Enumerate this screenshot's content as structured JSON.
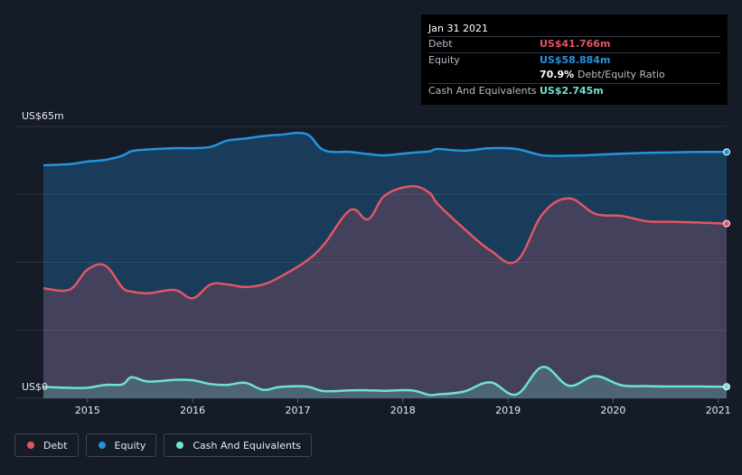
{
  "chart_data": {
    "type": "area",
    "x": [
      2014.58,
      2014.83,
      2015.0,
      2015.17,
      2015.33,
      2015.42,
      2015.58,
      2015.83,
      2016.0,
      2016.17,
      2016.33,
      2016.5,
      2016.67,
      2016.83,
      2017.08,
      2017.25,
      2017.5,
      2017.67,
      2017.83,
      2018.08,
      2018.25,
      2018.33,
      2018.58,
      2018.83,
      2019.08,
      2019.33,
      2019.58,
      2019.83,
      2020.08,
      2020.33,
      2020.58,
      2020.83,
      2021.08
    ],
    "series": [
      {
        "name": "Debt",
        "color": "#e15664",
        "values": [
          26.3,
          26.0,
          30.8,
          31.7,
          26.5,
          25.5,
          25.1,
          25.9,
          23.9,
          27.2,
          27.2,
          26.6,
          27.2,
          29.0,
          32.8,
          36.8,
          45.0,
          42.8,
          48.5,
          50.7,
          49.2,
          46.5,
          40.6,
          35.4,
          32.8,
          44.1,
          47.8,
          44.1,
          43.6,
          42.3,
          42.2,
          42.0,
          41.766
        ]
      },
      {
        "name": "Equity",
        "color": "#2394df",
        "values": [
          55.7,
          56.0,
          56.6,
          57.0,
          58.0,
          59.1,
          59.5,
          59.8,
          59.8,
          60.1,
          61.6,
          62.1,
          62.7,
          63.0,
          63.2,
          59.3,
          58.9,
          58.4,
          58.1,
          58.7,
          59.0,
          59.6,
          59.2,
          59.8,
          59.6,
          58.1,
          58.0,
          58.2,
          58.5,
          58.7,
          58.8,
          58.9,
          58.884
        ]
      },
      {
        "name": "Cash And Equivalents",
        "color": "#6fe2d1",
        "values": [
          2.7,
          2.5,
          2.5,
          3.2,
          3.3,
          5.0,
          4.0,
          4.4,
          4.3,
          3.4,
          3.2,
          3.7,
          2.0,
          2.7,
          2.8,
          1.7,
          1.9,
          1.9,
          1.8,
          1.9,
          0.8,
          0.9,
          1.6,
          3.8,
          0.9,
          7.5,
          3.0,
          5.3,
          3.1,
          2.9,
          2.8,
          2.8,
          2.745
        ]
      }
    ],
    "xticks": [
      "2015",
      "2016",
      "2017",
      "2018",
      "2019",
      "2020",
      "2021"
    ],
    "xtick_values": [
      2015,
      2016,
      2017,
      2018,
      2019,
      2020,
      2021
    ],
    "xlim": [
      2014.58,
      2021.08
    ],
    "ylim": [
      0,
      65
    ],
    "ytick_labels": {
      "top": "US$65m",
      "bottom": "US$0"
    },
    "grid": true,
    "legend_position": "bottom-left"
  },
  "tooltip": {
    "date": "Jan 31 2021",
    "rows": [
      {
        "label": "Debt",
        "value": "US$41.766m",
        "color": "#e15664"
      },
      {
        "label": "Equity",
        "value": "US$58.884m",
        "color": "#2394df"
      },
      {
        "label": "",
        "value": "70.9%",
        "note": "Debt/Equity Ratio",
        "color": "#ffffff"
      },
      {
        "label": "Cash And Equivalents",
        "value": "US$2.745m",
        "color": "#6fe2d1"
      }
    ]
  },
  "legend": [
    {
      "label": "Debt",
      "color": "#e15664"
    },
    {
      "label": "Equity",
      "color": "#2394df"
    },
    {
      "label": "Cash And Equivalents",
      "color": "#6fe2d1"
    }
  ]
}
